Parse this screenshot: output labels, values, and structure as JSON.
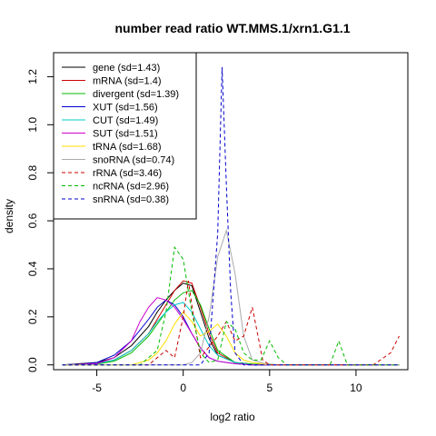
{
  "chart_data": {
    "type": "line",
    "title": "number read ratio WT.MMS.1/xrn1.G1.1",
    "xlabel": "log2 ratio",
    "ylabel": "density",
    "xlim": [
      -7.5,
      13
    ],
    "ylim": [
      -0.02,
      1.3
    ],
    "xticks": [
      -5,
      0,
      5,
      10
    ],
    "yticks": [
      0.0,
      0.2,
      0.4,
      0.6,
      0.8,
      1.0,
      1.2
    ],
    "legend_position": "top-left",
    "grid": false,
    "series": [
      {
        "name": "gene (sd=1.43)",
        "color": "#000000",
        "dash": "solid",
        "x": [
          -7,
          -6,
          -5,
          -4,
          -3,
          -2,
          -1.5,
          -1,
          -0.5,
          0,
          0.5,
          1,
          1.5,
          2,
          3,
          4,
          6,
          12.5
        ],
        "y": [
          0,
          0.005,
          0.01,
          0.03,
          0.08,
          0.16,
          0.22,
          0.27,
          0.31,
          0.34,
          0.33,
          0.22,
          0.11,
          0.04,
          0.01,
          0.003,
          0,
          0
        ]
      },
      {
        "name": "mRNA (sd=1.4)",
        "color": "#cc0000",
        "dash": "solid",
        "x": [
          -7,
          -6,
          -5,
          -4,
          -3,
          -2,
          -1.5,
          -1,
          -0.5,
          0,
          0.5,
          1,
          1.5,
          2,
          3,
          4,
          6,
          12.5
        ],
        "y": [
          0,
          0.002,
          0.005,
          0.02,
          0.06,
          0.13,
          0.19,
          0.25,
          0.31,
          0.35,
          0.34,
          0.24,
          0.13,
          0.05,
          0.01,
          0.002,
          0,
          0
        ]
      },
      {
        "name": "divergent (sd=1.39)",
        "color": "#00bb00",
        "dash": "solid",
        "x": [
          -7,
          -5,
          -4,
          -3,
          -2,
          -1.5,
          -1,
          -0.5,
          0,
          0.5,
          1,
          1.5,
          2,
          3,
          4,
          6,
          12.5
        ],
        "y": [
          0,
          0.003,
          0.015,
          0.05,
          0.12,
          0.17,
          0.22,
          0.27,
          0.3,
          0.31,
          0.25,
          0.15,
          0.06,
          0.01,
          0.003,
          0,
          0
        ]
      },
      {
        "name": "XUT (sd=1.56)",
        "color": "#0000cc",
        "dash": "solid",
        "x": [
          -7,
          -6,
          -5,
          -4,
          -3,
          -2,
          -1.5,
          -1,
          -0.5,
          0,
          0.5,
          1,
          1.5,
          2,
          3,
          4,
          12.5
        ],
        "y": [
          0,
          0.003,
          0.01,
          0.04,
          0.1,
          0.19,
          0.24,
          0.27,
          0.25,
          0.2,
          0.13,
          0.07,
          0.03,
          0.015,
          0.005,
          0,
          0
        ]
      },
      {
        "name": "CUT (sd=1.49)",
        "color": "#00cccc",
        "dash": "solid",
        "x": [
          -7,
          -5,
          -4,
          -3,
          -2,
          -1.5,
          -1,
          -0.5,
          0,
          0.5,
          1,
          1.5,
          2,
          3,
          4,
          12.5
        ],
        "y": [
          0,
          0.005,
          0.02,
          0.06,
          0.13,
          0.18,
          0.22,
          0.25,
          0.26,
          0.22,
          0.15,
          0.08,
          0.04,
          0.01,
          0,
          0
        ]
      },
      {
        "name": "SUT (sd=1.51)",
        "color": "#cc00cc",
        "dash": "solid",
        "x": [
          -7,
          -5,
          -4,
          -3,
          -2.5,
          -2,
          -1.5,
          -1,
          -0.5,
          0,
          0.5,
          1,
          1.5,
          2,
          3,
          4,
          12.5
        ],
        "y": [
          0,
          0.005,
          0.03,
          0.1,
          0.18,
          0.24,
          0.28,
          0.27,
          0.24,
          0.19,
          0.13,
          0.07,
          0.03,
          0.015,
          0.005,
          0,
          0
        ]
      },
      {
        "name": "tRNA (sd=1.68)",
        "color": "#ffdd00",
        "dash": "solid",
        "x": [
          -7,
          -3,
          -2,
          -1.5,
          -1,
          -0.5,
          0,
          0.5,
          1,
          1.5,
          2,
          2.5,
          3,
          3.5,
          4,
          5,
          12.5
        ],
        "y": [
          0,
          0,
          0.02,
          0.05,
          0.1,
          0.17,
          0.22,
          0.18,
          0.12,
          0.14,
          0.17,
          0.12,
          0.05,
          0.02,
          0.01,
          0,
          0
        ]
      },
      {
        "name": "snoRNA (sd=0.74)",
        "color": "#aaaaaa",
        "dash": "solid",
        "x": [
          -7,
          0,
          0.5,
          1,
          1.5,
          2,
          2.5,
          3,
          3.5,
          4,
          5,
          12.5
        ],
        "y": [
          0,
          0,
          0.01,
          0.05,
          0.2,
          0.45,
          0.56,
          0.38,
          0.12,
          0.02,
          0,
          0
        ]
      },
      {
        "name": "rRNA (sd=3.46)",
        "color": "#cc0000",
        "dash": "dashed",
        "x": [
          -7,
          -2,
          -1,
          -0.5,
          0,
          0.3,
          0.6,
          1,
          2,
          2.5,
          3,
          3.5,
          4,
          4.3,
          4.6,
          5,
          6,
          11,
          12,
          12.5
        ],
        "y": [
          0,
          0,
          0.06,
          0.03,
          0.2,
          0.35,
          0.2,
          0.03,
          0.12,
          0.18,
          0.1,
          0.12,
          0.24,
          0.13,
          0.02,
          0,
          0,
          0,
          0.05,
          0.12
        ]
      },
      {
        "name": "ncRNA (sd=2.96)",
        "color": "#00bb00",
        "dash": "dashed",
        "x": [
          -7,
          -2.5,
          -1.5,
          -1,
          -0.5,
          0,
          0.5,
          1,
          1.5,
          2,
          2.5,
          3,
          3.5,
          4,
          4.5,
          5,
          5.5,
          6,
          8.5,
          9,
          9.5,
          12.5
        ],
        "y": [
          0,
          0,
          0.06,
          0.22,
          0.49,
          0.44,
          0.22,
          0.05,
          0.01,
          0.02,
          0.18,
          0.15,
          0.05,
          0.02,
          0.02,
          0.1,
          0.03,
          0,
          0,
          0.1,
          0,
          0
        ]
      },
      {
        "name": "snRNA (sd=0.38)",
        "color": "#0000cc",
        "dash": "dashed",
        "x": [
          -7,
          1,
          1.5,
          2,
          2.25,
          2.5,
          2.75,
          3,
          3.5,
          12.5
        ],
        "y": [
          0,
          0,
          0.05,
          0.55,
          1.24,
          0.75,
          0.3,
          0.05,
          0,
          0
        ]
      }
    ]
  }
}
